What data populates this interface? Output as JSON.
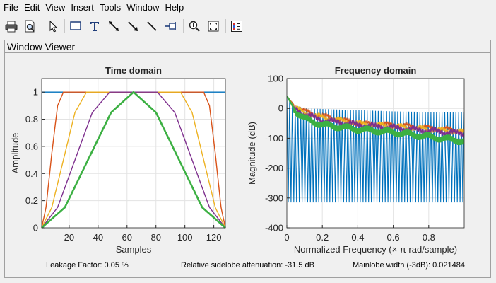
{
  "menu": [
    "File",
    "Edit",
    "View",
    "Insert",
    "Tools",
    "Window",
    "Help"
  ],
  "toolbar": {
    "buttons": [
      "printer-icon",
      "print-preview-icon",
      "pointer-icon",
      "rectangle-icon",
      "text-icon",
      "double-arrow-icon",
      "arrow-icon",
      "line-icon",
      "pin-icon",
      "zoom-in-icon",
      "fit-view-icon",
      "legend-icon"
    ]
  },
  "panel": {
    "title": "Window Viewer"
  },
  "status": {
    "leakage": "Leakage Factor: 0.05 %",
    "sidelobe": "Relative sidelobe attenuation: -31.5 dB",
    "mainlobe": "Mainlobe width (-3dB): 0.021484"
  },
  "colors": {
    "rect": "#0072bd",
    "taper1": "#d95319",
    "taper2": "#edb120",
    "taper3": "#7e2f8e",
    "hann": "#3cb043"
  },
  "chart_data": [
    {
      "type": "line",
      "title": "Time domain",
      "xlabel": "Samples",
      "ylabel": "Amplitude",
      "xlim": [
        1,
        128
      ],
      "ylim": [
        0,
        1.1
      ],
      "xticks": [
        20,
        40,
        60,
        80,
        100,
        120
      ],
      "yticks": [
        0,
        0.2,
        0.4,
        0.6,
        0.8,
        1
      ],
      "grid": true,
      "series": [
        {
          "color": "#0072bd",
          "x": [
            1,
            128
          ],
          "y": [
            1,
            1
          ]
        },
        {
          "color": "#d95319",
          "x": [
            1,
            4,
            8,
            12,
            16,
            113,
            117,
            121,
            125,
            128
          ],
          "y": [
            0,
            0.15,
            0.55,
            0.9,
            1,
            1,
            0.9,
            0.55,
            0.15,
            0
          ]
        },
        {
          "color": "#edb120",
          "x": [
            1,
            8,
            16,
            24,
            32,
            97,
            105,
            113,
            121,
            128
          ],
          "y": [
            0,
            0.15,
            0.5,
            0.85,
            1,
            1,
            0.85,
            0.5,
            0.15,
            0
          ]
        },
        {
          "color": "#7e2f8e",
          "x": [
            1,
            12,
            24,
            36,
            48,
            81,
            93,
            105,
            117,
            128
          ],
          "y": [
            0,
            0.15,
            0.5,
            0.85,
            1,
            1,
            0.85,
            0.5,
            0.15,
            0
          ]
        },
        {
          "color": "#3cb043",
          "x": [
            1,
            17,
            33,
            49,
            64.5,
            80,
            96,
            112,
            128
          ],
          "y": [
            0,
            0.15,
            0.5,
            0.85,
            1,
            0.85,
            0.5,
            0.15,
            0
          ]
        }
      ]
    },
    {
      "type": "line",
      "title": "Frequency domain",
      "xlabel": "Normalized Frequency  (× π rad/sample)",
      "ylabel": "Magnitude (dB)",
      "xlim": [
        0,
        1
      ],
      "ylim": [
        -400,
        100
      ],
      "xticks": [
        0,
        0.2,
        0.4,
        0.6,
        0.8
      ],
      "yticks": [
        100,
        0,
        -100,
        -200,
        -300,
        -400
      ],
      "grid": true,
      "series": [
        {
          "color": "#0072bd",
          "x": [
            0,
            0.05,
            0.1,
            0.2,
            0.4,
            0.6,
            0.8,
            1.0
          ],
          "y": [
            42,
            10,
            0,
            -2,
            -6,
            -10,
            -12,
            -13
          ],
          "null_depth": -315,
          "lobe_count": 64
        },
        {
          "color": "#d95319",
          "x": [
            0,
            0.05,
            0.1,
            0.2,
            0.4,
            0.6,
            0.8,
            1.0
          ],
          "y": [
            42,
            5,
            -10,
            -25,
            -50,
            -55,
            -65,
            -75
          ]
        },
        {
          "color": "#edb120",
          "x": [
            0,
            0.05,
            0.1,
            0.2,
            0.4,
            0.6,
            0.8,
            1.0
          ],
          "y": [
            42,
            0,
            -15,
            -30,
            -50,
            -60,
            -70,
            -80
          ]
        },
        {
          "color": "#7e2f8e",
          "x": [
            0,
            0.05,
            0.1,
            0.2,
            0.4,
            0.6,
            0.8,
            1.0
          ],
          "y": [
            42,
            -5,
            -20,
            -40,
            -55,
            -65,
            -75,
            -85
          ]
        },
        {
          "color": "#3cb043",
          "x": [
            0,
            0.05,
            0.1,
            0.2,
            0.4,
            0.6,
            0.8,
            1.0
          ],
          "y": [
            42,
            -10,
            -35,
            -55,
            -70,
            -80,
            -95,
            -110
          ]
        }
      ]
    }
  ]
}
